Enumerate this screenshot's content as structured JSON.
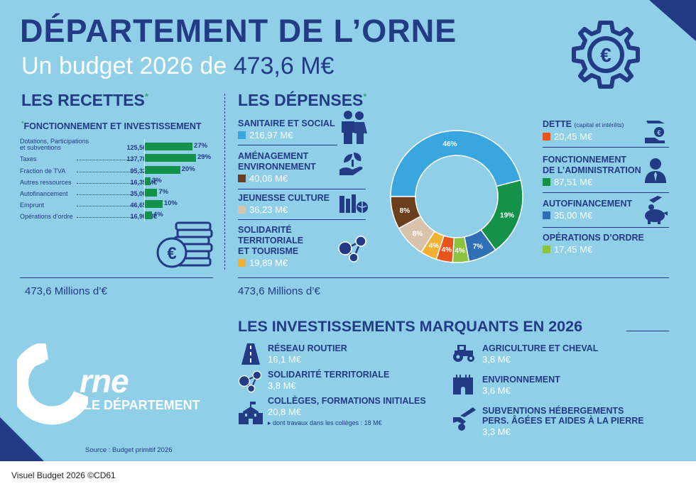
{
  "header": {
    "title": "DÉPARTEMENT DE L’ORNE",
    "subtitle_prefix": "Un budget 2026 de ",
    "subtitle_amount": "473,6 M€"
  },
  "colors": {
    "background": "#8fcfe8",
    "navy": "#233a85",
    "green_bar": "#15924a"
  },
  "recettes": {
    "title": "LES RECETTES",
    "asterisk": "*",
    "subtitle": "FONCTIONNEMENT ET INVESTISSEMENT",
    "total": "473,6 Millions d’€"
  },
  "depenses": {
    "title": "LES DÉPENSES",
    "asterisk": "*",
    "total": "473,6 Millions d’€",
    "left": [
      {
        "name": "SANITAIRE ET SOCIAL",
        "amount": "216,97 M€",
        "color": "#3aa6e0",
        "icon": "family-icon"
      },
      {
        "name": "AMÉNAGEMENT\nENVIRONNEMENT",
        "amount": "40,06 M€",
        "color": "#6b3f1e",
        "icon": "plant-hand-icon"
      },
      {
        "name": "JEUNESSE CULTURE",
        "amount": "36,23 M€",
        "color": "#d9c3ad",
        "icon": "books-icon"
      },
      {
        "name": "SOLIDARITÉ\nTERRITORIALE\nET TOURISME",
        "amount": "19,89 M€",
        "color": "#f3b134",
        "icon": "network-icon"
      }
    ],
    "right": [
      {
        "name": "DETTE",
        "note": "(capital et intérêts)",
        "amount": "20,45 M€",
        "color": "#e8541e",
        "icon": "coin-hand-icon"
      },
      {
        "name": "FONCTIONNEMENT\nDE L’ADMINISTRATION",
        "amount": "87,51 M€",
        "color": "#15924a",
        "icon": "admin-person-icon"
      },
      {
        "name": "AUTOFINANCEMENT",
        "amount": "35,00 M€",
        "color": "#2f6fb6",
        "icon": "piggy-bank-icon"
      },
      {
        "name": "OPÉRATIONS D’ORDRE",
        "amount": "17,45 M€",
        "color": "#8cc33f",
        "icon": ""
      }
    ]
  },
  "investissements": {
    "title": "LES INVESTISSEMENTS MARQUANTS EN 2026",
    "items": [
      {
        "name": "RÉSEAU ROUTIER",
        "amount": "16,1 M€",
        "icon": "road-icon"
      },
      {
        "name": "SOLIDARITÉ TERRITORIALE",
        "amount": "3,8 M€",
        "icon": "network-icon"
      },
      {
        "name": "COLLÈGES, FORMATIONS INITIALES",
        "amount": "20,8 M€",
        "note": "▸ dont travaux dans les collèges : 18 M€",
        "icon": "school-icon"
      },
      {
        "name": "AGRICULTURE ET CHEVAL",
        "amount": "3,8 M€",
        "icon": "tractor-icon"
      },
      {
        "name": "ENVIRONNEMENT",
        "amount": "3,6 M€",
        "icon": "castle-icon"
      },
      {
        "name": "SUBVENTIONS HÉBERGEMENTS\nPERS. ÂGÉES ET AIDES À LA PIERRE",
        "amount": "3,3 M€",
        "icon": "coin-hand-icon"
      }
    ]
  },
  "logo": {
    "rne": "rne",
    "dept": "LE DÉPARTEMENT"
  },
  "source": "Source : Budget primitif 2026",
  "caption": "Visuel Budget 2026 ©CD61",
  "chart_data": [
    {
      "type": "bar",
      "orientation": "horizontal",
      "title": "LES RECETTES",
      "subtitle": "FONCTIONNEMENT ET INVESTISSEMENT",
      "categories": [
        "Dotations, Participations\net subventions",
        "Taxes",
        "Fraction de TVA",
        "Autres ressources",
        "Autofinancement",
        "Emprunt",
        "Opérations d’ordre"
      ],
      "value_labels": [
        "125,56 M€",
        "137,78 M€",
        "95,32 M€",
        "16,39 M€",
        "35,00 M€",
        "46,65 M€",
        "16,90 M€"
      ],
      "values": [
        27,
        29,
        20,
        3,
        7,
        10,
        4
      ],
      "percent_labels": [
        "27%",
        "29%",
        "20%",
        "3%",
        "7%",
        "10%",
        "4%"
      ],
      "xlim": [
        0,
        30
      ],
      "grid": false,
      "legend": "none"
    },
    {
      "type": "pie",
      "variant": "donut",
      "title": "LES DÉPENSES",
      "categories": [
        "SANITAIRE ET SOCIAL",
        "FONCTIONNEMENT DE L’ADMINISTRATION",
        "AUTOFINANCEMENT",
        "OPÉRATIONS D’ORDRE",
        "DETTE",
        "SOLIDARITÉ TERRITORIALE ET TOURISME",
        "JEUNESSE CULTURE",
        "AMÉNAGEMENT ENVIRONNEMENT"
      ],
      "values": [
        46,
        19,
        7,
        4,
        4,
        4,
        8,
        8
      ],
      "labels": [
        "46%",
        "19%",
        "7%",
        "4%",
        "4%",
        "4%",
        "8%",
        "8%"
      ],
      "colors": [
        "#3aa6e0",
        "#15924a",
        "#2f6fb6",
        "#8cc33f",
        "#e8541e",
        "#f3b134",
        "#d9c3ad",
        "#6b3f1e"
      ],
      "order": "clockwise from 9 o’clock (left)",
      "legend": "left and right of donut"
    }
  ]
}
